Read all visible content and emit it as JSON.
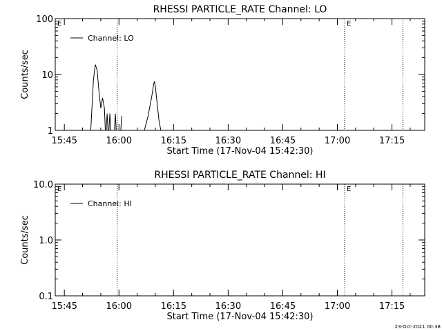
{
  "footer": {
    "timestamp": "23-Oct-2021 00:38"
  },
  "colors": {
    "background": "#ffffff",
    "foreground": "#000000"
  },
  "chart_data": [
    {
      "type": "line",
      "title": "RHESSI PARTICLE_RATE Channel: LO",
      "xlabel": "Start Time (17-Nov-04 15:42:30)",
      "ylabel": "Counts/sec",
      "yscale": "log",
      "ylim": [
        1,
        100
      ],
      "xlim": [
        "15:42:30",
        "17:24:00"
      ],
      "x_ticks": [
        "15:45",
        "16:00",
        "16:15",
        "16:30",
        "16:45",
        "17:00",
        "17:15"
      ],
      "y_ticks": [
        "1",
        "10",
        "100"
      ],
      "legend": {
        "entries": [
          "Channel: LO"
        ],
        "position": "top-left"
      },
      "markers": [
        {
          "time": "15:42:30",
          "label": "E"
        },
        {
          "time": "15:59:30",
          "label": ""
        },
        {
          "time": "17:02:00",
          "label": "E"
        },
        {
          "time": "17:18:00",
          "label": ""
        }
      ],
      "series": [
        {
          "name": "Channel: LO",
          "segments": [
            [
              [
                "15:52:15",
                1
              ],
              [
                "15:53:00",
                8
              ],
              [
                "15:53:30",
                15
              ],
              [
                "15:54:00",
                12
              ],
              [
                "15:54:30",
                5
              ],
              [
                "15:55:00",
                2.5
              ],
              [
                "15:55:30",
                3.8
              ],
              [
                "15:56:00",
                2.5
              ],
              [
                "15:56:15",
                1
              ]
            ],
            [
              [
                "15:56:30",
                1
              ],
              [
                "15:56:45",
                2
              ],
              [
                "15:57:00",
                1
              ]
            ],
            [
              [
                "15:57:15",
                1
              ],
              [
                "15:57:30",
                2
              ],
              [
                "15:57:45",
                1
              ]
            ],
            [
              [
                "15:58:45",
                1
              ],
              [
                "15:59:00",
                2
              ],
              [
                "15:59:15",
                1
              ]
            ],
            [
              [
                "16:00:30",
                1
              ],
              [
                "16:00:45",
                1.8
              ]
            ],
            [
              [
                "16:07:00",
                1
              ],
              [
                "16:08:00",
                1.8
              ],
              [
                "16:09:00",
                4
              ],
              [
                "16:09:30",
                6.5
              ],
              [
                "16:09:45",
                7.5
              ],
              [
                "16:10:00",
                6
              ],
              [
                "16:10:30",
                3
              ],
              [
                "16:11:00",
                1.5
              ],
              [
                "16:11:30",
                1
              ]
            ]
          ]
        }
      ]
    },
    {
      "type": "line",
      "title": "RHESSI PARTICLE_RATE Channel: HI",
      "xlabel": "Start Time (17-Nov-04 15:42:30)",
      "ylabel": "Counts/sec",
      "yscale": "log",
      "ylim": [
        0.1,
        10
      ],
      "xlim": [
        "15:42:30",
        "17:24:00"
      ],
      "x_ticks": [
        "15:45",
        "16:00",
        "16:15",
        "16:30",
        "16:45",
        "17:00",
        "17:15"
      ],
      "y_ticks": [
        "0.1",
        "1.0",
        "10.0"
      ],
      "legend": {
        "entries": [
          "Channel: HI"
        ],
        "position": "top-left"
      },
      "markers": [
        {
          "time": "15:42:30",
          "label": "E"
        },
        {
          "time": "15:59:30",
          "label": ""
        },
        {
          "time": "17:02:00",
          "label": "E"
        },
        {
          "time": "17:18:00",
          "label": ""
        }
      ],
      "series": [
        {
          "name": "Channel: HI",
          "segments": []
        }
      ]
    }
  ]
}
